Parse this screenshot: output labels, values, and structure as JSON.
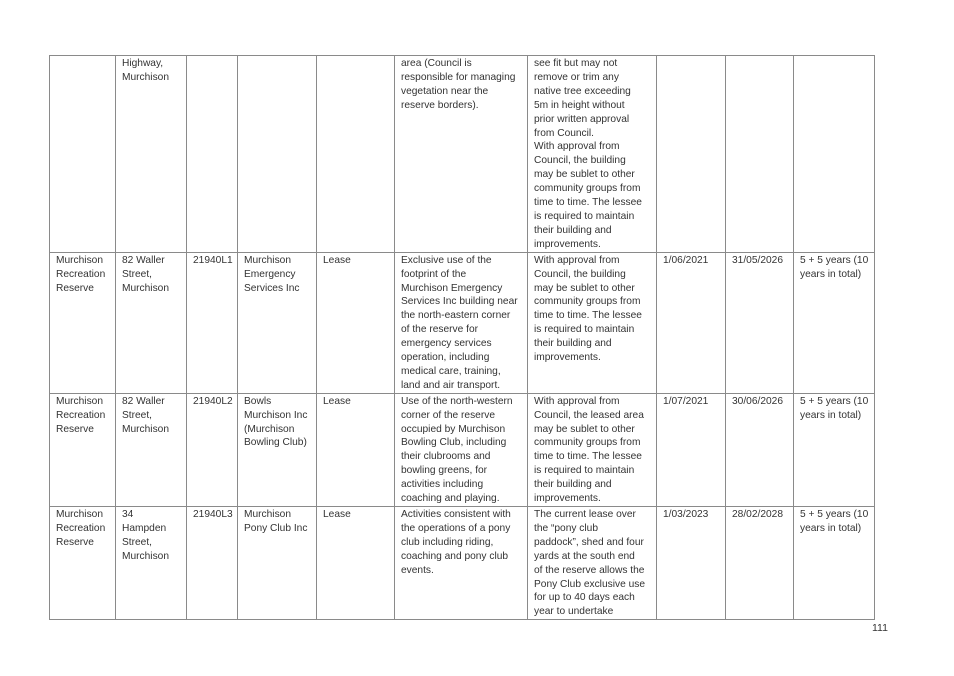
{
  "table": {
    "rows": [
      [
        "",
        "Highway,\nMurchison",
        "",
        "",
        "",
        "area (Council is\nresponsible for managing\nvegetation near the\nreserve borders).",
        "see fit but may not\nremove or trim any\nnative tree exceeding\n5m in height without\nprior written approval\nfrom Council.\nWith approval from\nCouncil, the building\nmay be sublet to other\ncommunity groups from\ntime to time. The lessee\nis required to maintain\ntheir building and\nimprovements.",
        "",
        "",
        ""
      ],
      [
        "Murchison\nRecreation\nReserve",
        "82 Waller\nStreet,\nMurchison",
        "21940L1",
        "Murchison\nEmergency\nServices Inc",
        "Lease",
        "Exclusive use of the\nfootprint of the\nMurchison Emergency\nServices Inc building near\nthe north-eastern corner\nof the reserve for\nemergency services\noperation, including\nmedical care, training,\nland and air transport.",
        "With approval from\nCouncil, the building\nmay be sublet to other\ncommunity groups from\ntime to time. The lessee\nis required to maintain\ntheir building and\nimprovements.",
        "1/06/2021",
        "31/05/2026",
        "5 + 5 years (10\nyears in total)"
      ],
      [
        "Murchison\nRecreation\nReserve",
        "82 Waller\nStreet,\nMurchison",
        "21940L2",
        "Bowls\nMurchison Inc\n(Murchison\nBowling Club)",
        "Lease",
        "Use of the north-western\ncorner of the reserve\noccupied by Murchison\nBowling Club, including\ntheir clubrooms and\nbowling greens, for\nactivities including\ncoaching and playing.",
        "With approval from\nCouncil, the leased area\nmay be sublet to other\ncommunity groups from\ntime to time. The lessee\nis required to maintain\ntheir building and\nimprovements.",
        "1/07/2021",
        "30/06/2026",
        "5 + 5 years (10\nyears in total)"
      ],
      [
        "Murchison\nRecreation\nReserve",
        "34\nHampden\nStreet,\nMurchison",
        "21940L3",
        "Murchison\nPony Club Inc",
        "Lease",
        "Activities consistent with\nthe operations of a pony\nclub including riding,\ncoaching and pony club\nevents.",
        "The current lease over\nthe “pony club\npaddock”, shed and four\nyards at the south end\nof the reserve allows the\nPony Club exclusive use\nfor up to 40 days each\nyear to undertake",
        "1/03/2023",
        "28/02/2028",
        "5 + 5 years (10\nyears in total)"
      ]
    ]
  },
  "page_number": "111"
}
